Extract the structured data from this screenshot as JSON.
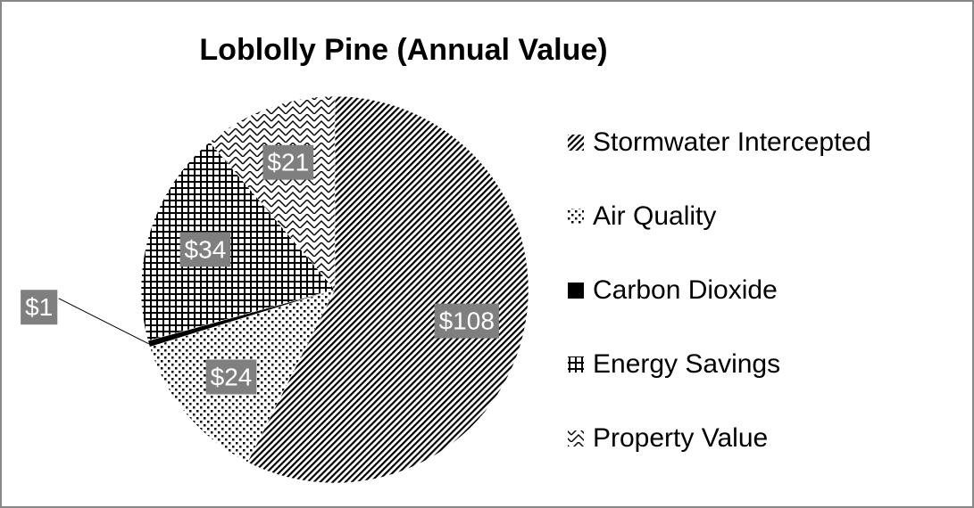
{
  "chart_data": {
    "type": "pie",
    "title": "Loblolly Pine (Annual Value)",
    "categories": [
      "Stormwater Intercepted",
      "Air Quality",
      "Carbon Dioxide",
      "Energy Savings",
      "Property Value"
    ],
    "values": [
      108,
      24,
      1,
      34,
      21
    ],
    "value_labels": [
      "$108",
      "$24",
      "$1",
      "$34",
      "$21"
    ],
    "legend": "right"
  }
}
